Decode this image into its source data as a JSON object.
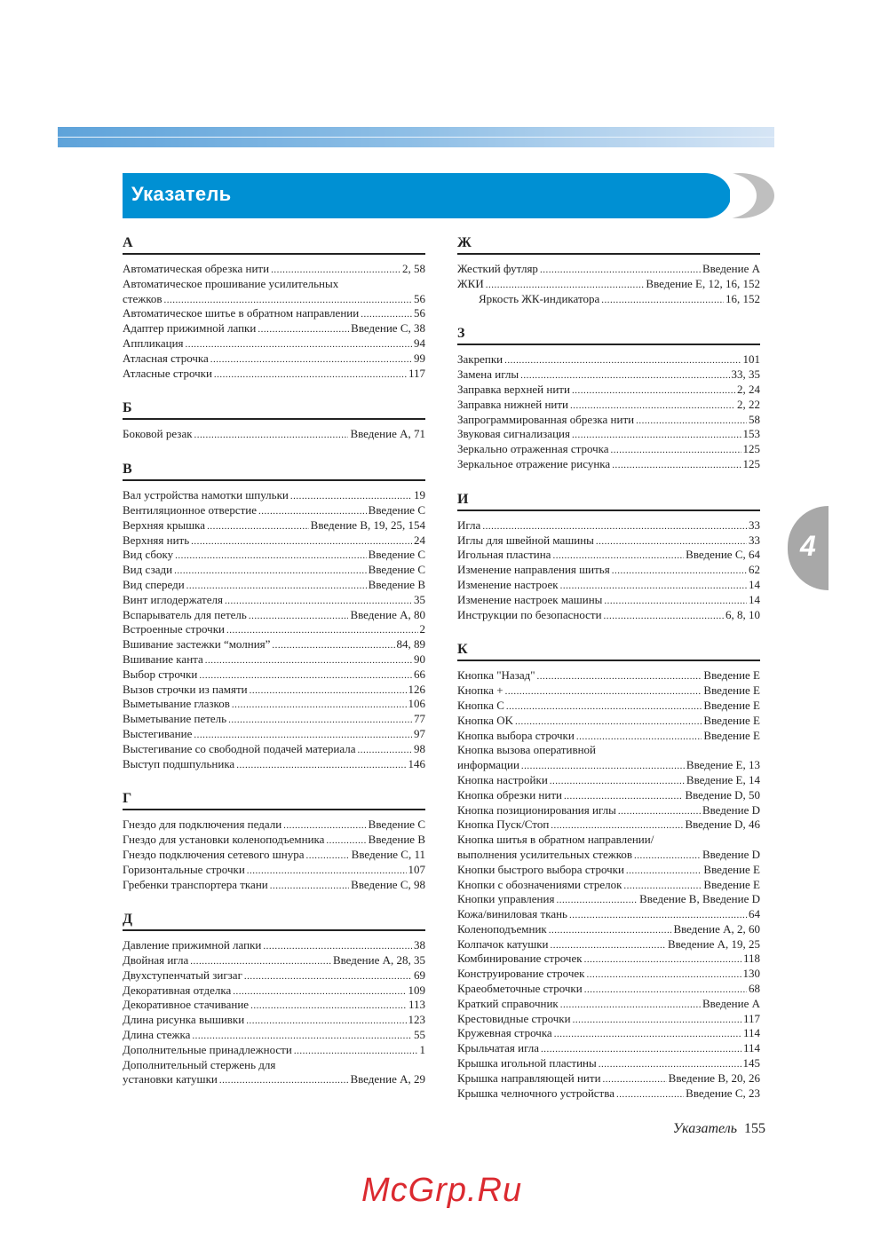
{
  "header": {
    "title": "Указатель",
    "accent_color": "#0090d3",
    "band_color": "#5ea3da"
  },
  "chapter_tab": "4",
  "watermark": "McGrp.Ru",
  "footer": {
    "section": "Указатель",
    "page": "155"
  },
  "left_sections": [
    {
      "letter": "А",
      "entries": [
        {
          "t": "Автоматическая обрезка нити",
          "p": "2, 58"
        },
        {
          "t": "Автоматическое прошивание усилительных"
        },
        {
          "t": "стежков",
          "p": "56"
        },
        {
          "t": "Автоматическое шитье в обратном направлении",
          "p": "56"
        },
        {
          "t": "Адаптер прижимной лапки",
          "p": "Введение C, 38"
        },
        {
          "t": "Аппликация",
          "p": "94"
        },
        {
          "t": "Атласная строчка",
          "p": "99"
        },
        {
          "t": "Атласные строчки",
          "p": "117"
        }
      ]
    },
    {
      "letter": "Б",
      "entries": [
        {
          "t": "Боковой резак",
          "p": "Введение A, 71"
        }
      ]
    },
    {
      "letter": "В",
      "entries": [
        {
          "t": "Вал устройства намотки шпульки",
          "p": "19"
        },
        {
          "t": "Вентиляционное отверстие",
          "p": "Введение C"
        },
        {
          "t": "Верхняя крышка",
          "p": "Введение B, 19, 25, 154"
        },
        {
          "t": "Верхняя нить",
          "p": "24"
        },
        {
          "t": "Вид сбоку",
          "p": "Введение C"
        },
        {
          "t": "Вид сзади",
          "p": "Введение C"
        },
        {
          "t": "Вид спереди",
          "p": "Введение B"
        },
        {
          "t": "Винт иглодержателя",
          "p": "35"
        },
        {
          "t": "Вспарыватель для петель",
          "p": "Введение A, 80"
        },
        {
          "t": "Встроенные строчки",
          "p": "2"
        },
        {
          "t": "Вшивание застежки “молния”",
          "p": "84, 89"
        },
        {
          "t": "Вшивание канта",
          "p": "90"
        },
        {
          "t": "Выбор строчки",
          "p": "66"
        },
        {
          "t": "Вызов строчки из памяти",
          "p": "126"
        },
        {
          "t": "Выметывание глазков",
          "p": "106"
        },
        {
          "t": "Выметывание петель",
          "p": "77"
        },
        {
          "t": "Выстегивание",
          "p": "97"
        },
        {
          "t": "Выстегивание со свободной подачей материала",
          "p": "98"
        },
        {
          "t": "Выступ подшпульника",
          "p": "146"
        }
      ]
    },
    {
      "letter": "Г",
      "entries": [
        {
          "t": "Гнездо для подключения педали",
          "p": "Введение C"
        },
        {
          "t": "Гнездо для установки коленоподъемника",
          "p": "Введение B"
        },
        {
          "t": "Гнездо подключения сетевого шнура",
          "p": "Введение C, 11"
        },
        {
          "t": "Горизонтальные строчки",
          "p": "107"
        },
        {
          "t": "Гребенки транспортера ткани",
          "p": "Введение C, 98"
        }
      ]
    },
    {
      "letter": "Д",
      "entries": [
        {
          "t": "Давление прижимной лапки",
          "p": "38"
        },
        {
          "t": "Двойная игла",
          "p": "Введение A, 28, 35"
        },
        {
          "t": "Двухступенчатый зигзаг",
          "p": "69"
        },
        {
          "t": "Декоративная отделка",
          "p": "109"
        },
        {
          "t": "Декоративное стачивание",
          "p": "113"
        },
        {
          "t": "Длина рисунка вышивки",
          "p": "123"
        },
        {
          "t": "Длина стежка",
          "p": "55"
        },
        {
          "t": "Дополнительные принадлежности",
          "p": "1"
        },
        {
          "t": "Дополнительный стержень для"
        },
        {
          "t": "установки катушки",
          "p": "Введение A, 29"
        }
      ]
    }
  ],
  "right_sections": [
    {
      "letter": "Ж",
      "entries": [
        {
          "t": "Жесткий футляр",
          "p": "Введение A"
        },
        {
          "t": "ЖКИ",
          "p": "Введение E, 12, 16, 152"
        },
        {
          "t": "Яркость ЖК-индикатора",
          "p": "16, 152",
          "indent": true
        }
      ]
    },
    {
      "letter": "З",
      "entries": [
        {
          "t": "Закрепки",
          "p": "101"
        },
        {
          "t": "Замена иглы",
          "p": "33, 35"
        },
        {
          "t": "Заправка верхней нити",
          "p": "2, 24"
        },
        {
          "t": "Заправка нижней нити",
          "p": "2, 22"
        },
        {
          "t": "Запрограммированная обрезка нити",
          "p": "58"
        },
        {
          "t": "Звуковая сигнализация",
          "p": "153"
        },
        {
          "t": "Зеркально отраженная строчка",
          "p": "125"
        },
        {
          "t": "Зеркальное отражение рисунка",
          "p": "125"
        }
      ]
    },
    {
      "letter": "И",
      "entries": [
        {
          "t": "Игла",
          "p": "33"
        },
        {
          "t": "Иглы для швейной машины",
          "p": "33"
        },
        {
          "t": "Игольная пластина",
          "p": "Введение C, 64"
        },
        {
          "t": "Изменение направления шитья",
          "p": "62"
        },
        {
          "t": "Изменение настроек",
          "p": "14"
        },
        {
          "t": "Изменение настроек машины",
          "p": "14"
        },
        {
          "t": "Инструкции по безопасности",
          "p": "6, 8, 10"
        }
      ]
    },
    {
      "letter": "К",
      "entries": [
        {
          "t": "Кнопка \"Назад\"",
          "p": "Введение E"
        },
        {
          "t": "Кнопка +",
          "p": "Введение E"
        },
        {
          "t": "Кнопка C",
          "p": "Введение E"
        },
        {
          "t": "Кнопка OK",
          "p": "Введение E"
        },
        {
          "t": "Кнопка выбора строчки",
          "p": "Введение E"
        },
        {
          "t": "Кнопка вызова оперативной"
        },
        {
          "t": "информации",
          "p": "Введение E, 13"
        },
        {
          "t": "Кнопка настройки",
          "p": "Введение E, 14"
        },
        {
          "t": "Кнопка обрезки нити",
          "p": "Введение D, 50"
        },
        {
          "t": "Кнопка позиционирования иглы",
          "p": "Введение D"
        },
        {
          "t": "Кнопка Пуск/Стоп",
          "p": "Введение D, 46"
        },
        {
          "t": "Кнопка шитья в обратном направлении/"
        },
        {
          "t": "выполнения усилительных стежков",
          "p": "Введение D"
        },
        {
          "t": "Кнопки быстрого выбора строчки",
          "p": "Введение E"
        },
        {
          "t": "Кнопки с обозначениями стрелок",
          "p": "Введение E"
        },
        {
          "t": "Кнопки управления",
          "p": "Введение B, Введение D"
        },
        {
          "t": "Кожа/виниловая ткань",
          "p": "64"
        },
        {
          "t": "Коленоподъемник",
          "p": "Введение A, 2, 60"
        },
        {
          "t": "Колпачок катушки",
          "p": "Введение A, 19, 25"
        },
        {
          "t": "Комбинирование строчек",
          "p": "118"
        },
        {
          "t": "Конструирование строчек",
          "p": "130"
        },
        {
          "t": "Краеобметочные строчки",
          "p": "68"
        },
        {
          "t": "Краткий справочник",
          "p": "Введение A"
        },
        {
          "t": "Крестовидные строчки",
          "p": "117"
        },
        {
          "t": "Кружевная строчка",
          "p": "114"
        },
        {
          "t": "Крыльчатая игла",
          "p": "114"
        },
        {
          "t": "Крышка игольной пластины",
          "p": "145"
        },
        {
          "t": "Крышка направляющей нити",
          "p": "Введение B, 20, 26"
        },
        {
          "t": "Крышка челночного устройства",
          "p": "Введение C, 23"
        }
      ]
    }
  ]
}
